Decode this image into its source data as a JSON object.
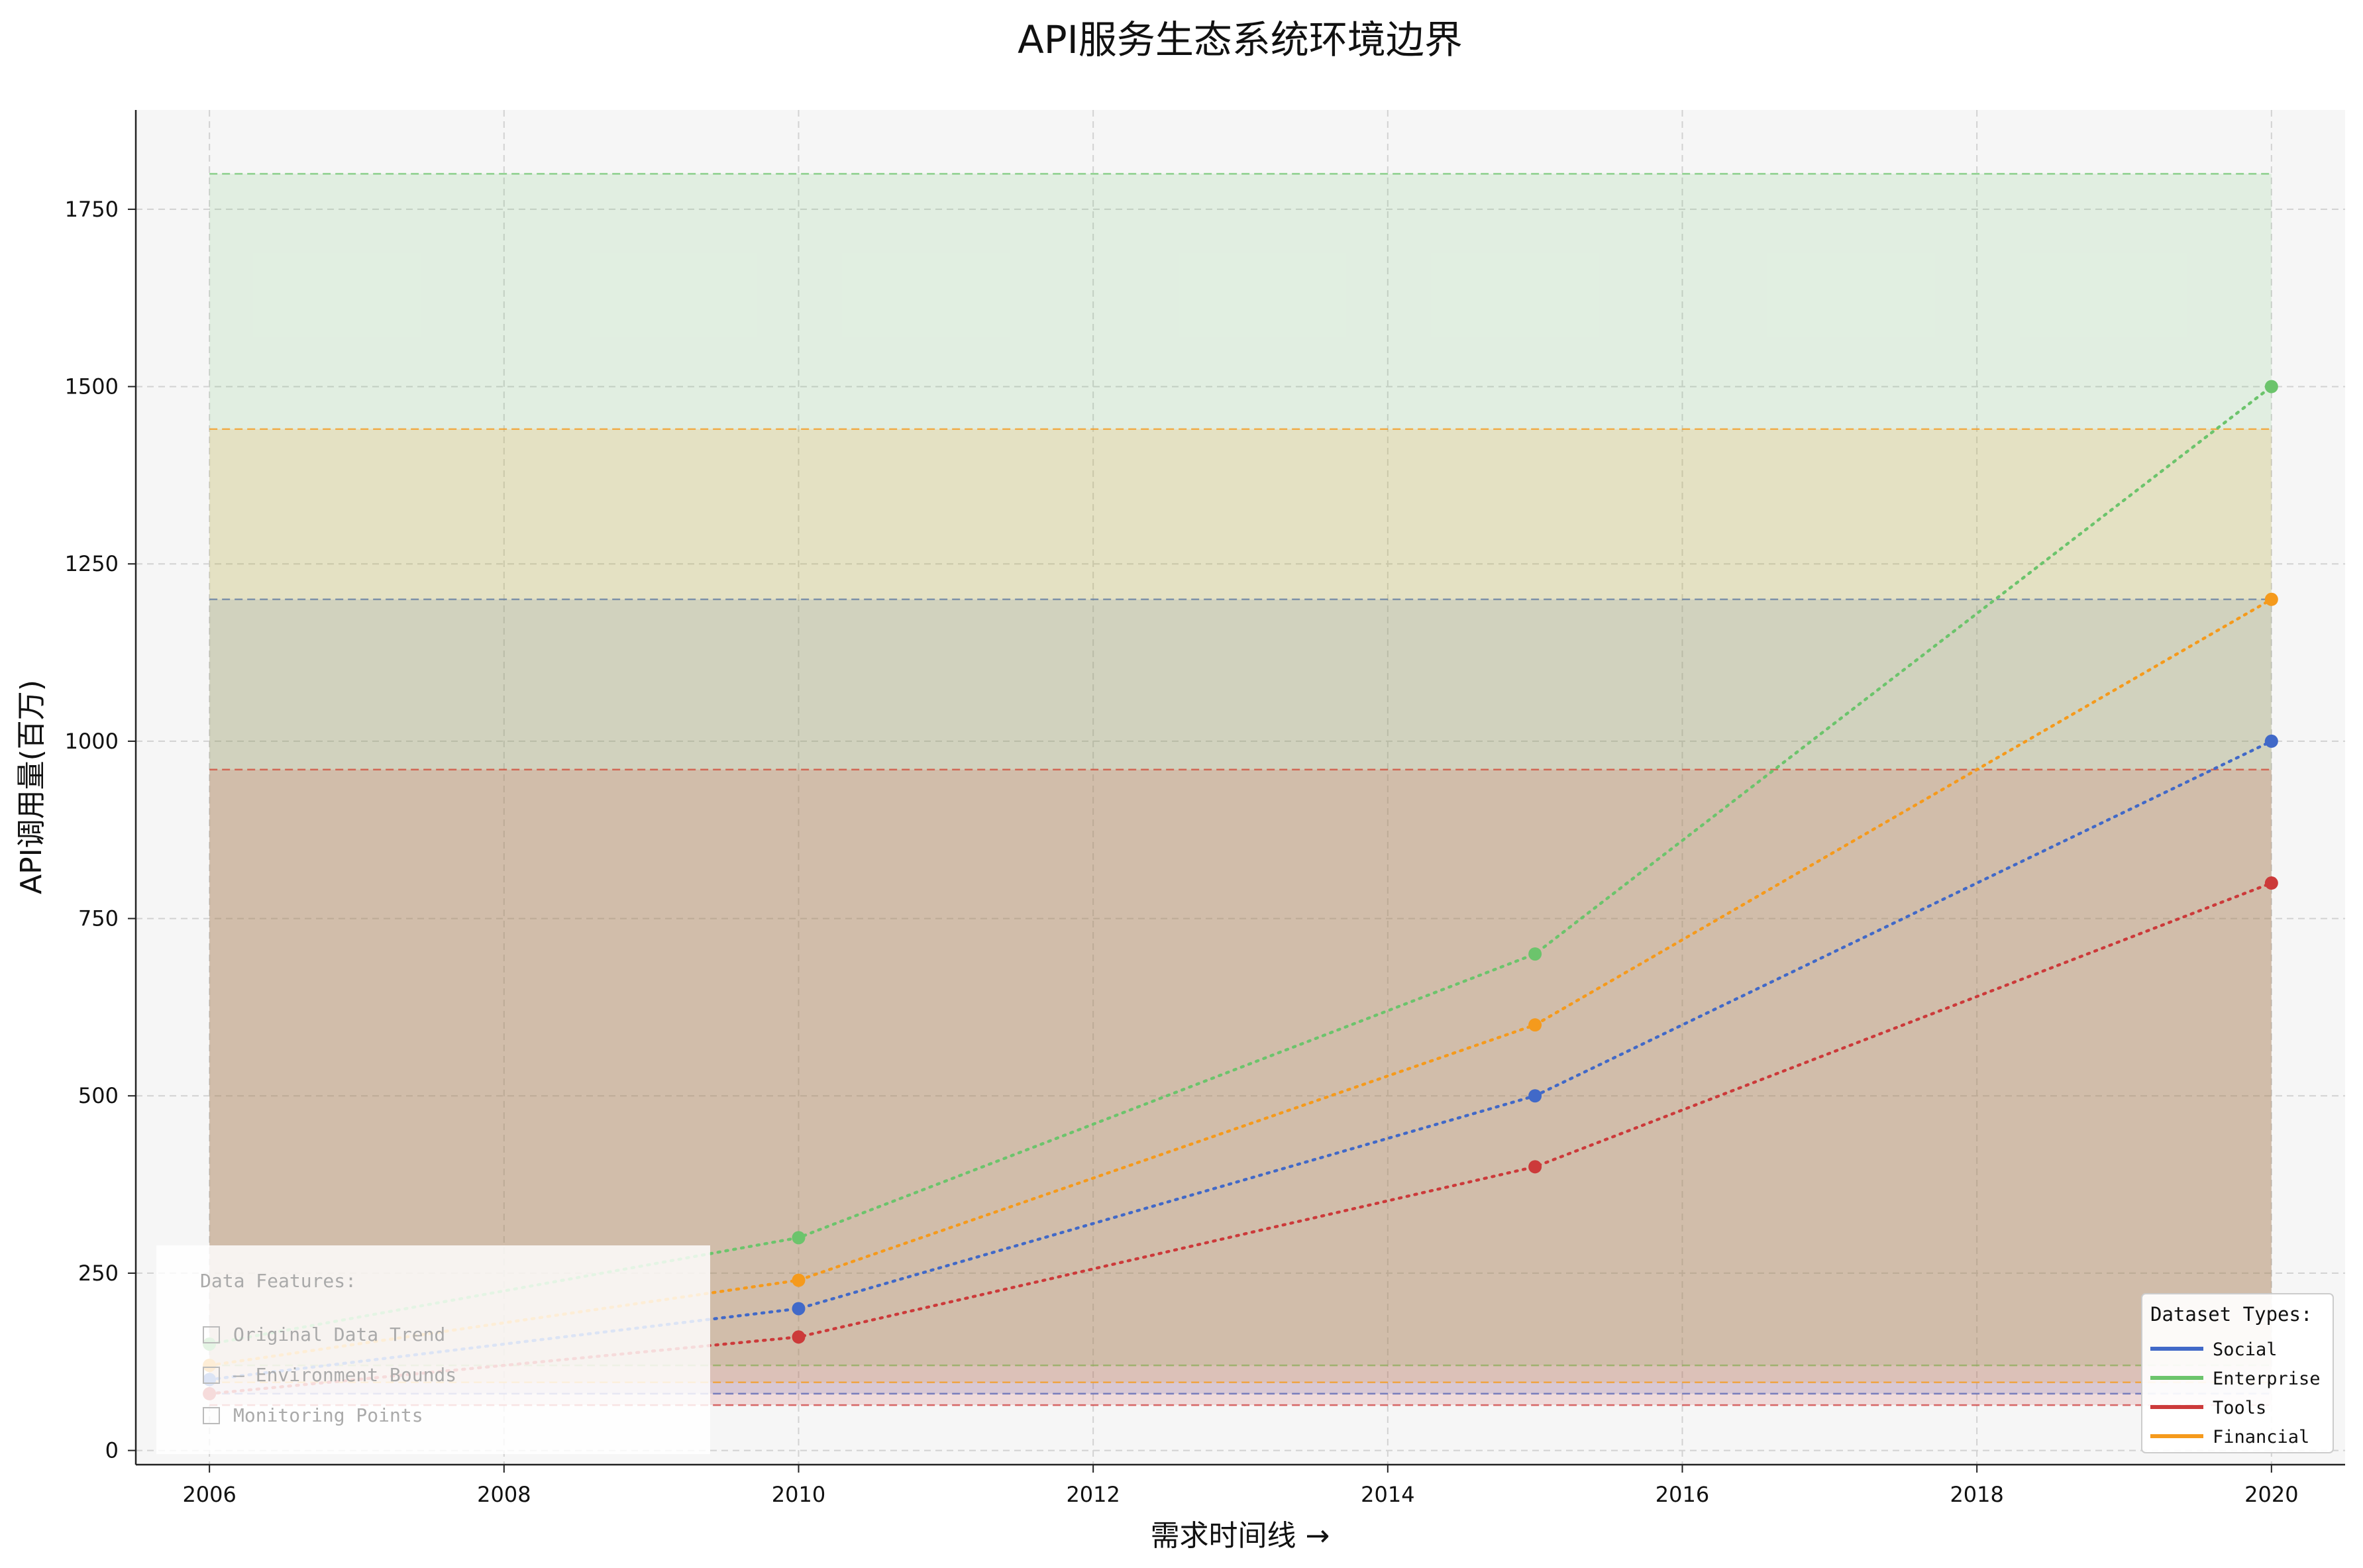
{
  "chart_data": {
    "type": "line",
    "title": "API服务生态系统环境边界",
    "xlabel": "需求时间线 →",
    "ylabel": "API调用量(百万)",
    "xlim": [
      2005.5,
      2020.5
    ],
    "ylim": [
      -20,
      1890
    ],
    "x_ticks": [
      2006,
      2008,
      2010,
      2012,
      2014,
      2016,
      2018,
      2020
    ],
    "y_ticks": [
      0,
      250,
      500,
      750,
      1000,
      1250,
      1500,
      1750
    ],
    "grid": true,
    "series": [
      {
        "name": "Social",
        "color": "#4169c8",
        "x": [
          2006,
          2010,
          2015,
          2020
        ],
        "y": [
          100,
          200,
          500,
          1000
        ],
        "bounds": [
          80,
          1200
        ]
      },
      {
        "name": "Enterprise",
        "color": "#6cc46c",
        "x": [
          2006,
          2010,
          2015,
          2020
        ],
        "y": [
          150,
          300,
          700,
          1500
        ],
        "bounds": [
          120,
          1800
        ]
      },
      {
        "name": "Tools",
        "color": "#cc3a3a",
        "x": [
          2006,
          2010,
          2015,
          2020
        ],
        "y": [
          80,
          160,
          400,
          800
        ],
        "bounds": [
          64,
          960
        ]
      },
      {
        "name": "Financial",
        "color": "#f59a1c",
        "x": [
          2006,
          2010,
          2015,
          2020
        ],
        "y": [
          120,
          240,
          600,
          1200
        ],
        "bounds": [
          96,
          1440
        ]
      }
    ],
    "legend": {
      "title": "Dataset Types:",
      "placement": "bottom-right"
    },
    "features_box": {
      "title": "Data Features:",
      "items": [
        "Original Data Trend",
        "— Environment Bounds",
        "Monitoring Points"
      ],
      "placement": "bottom-left"
    }
  }
}
